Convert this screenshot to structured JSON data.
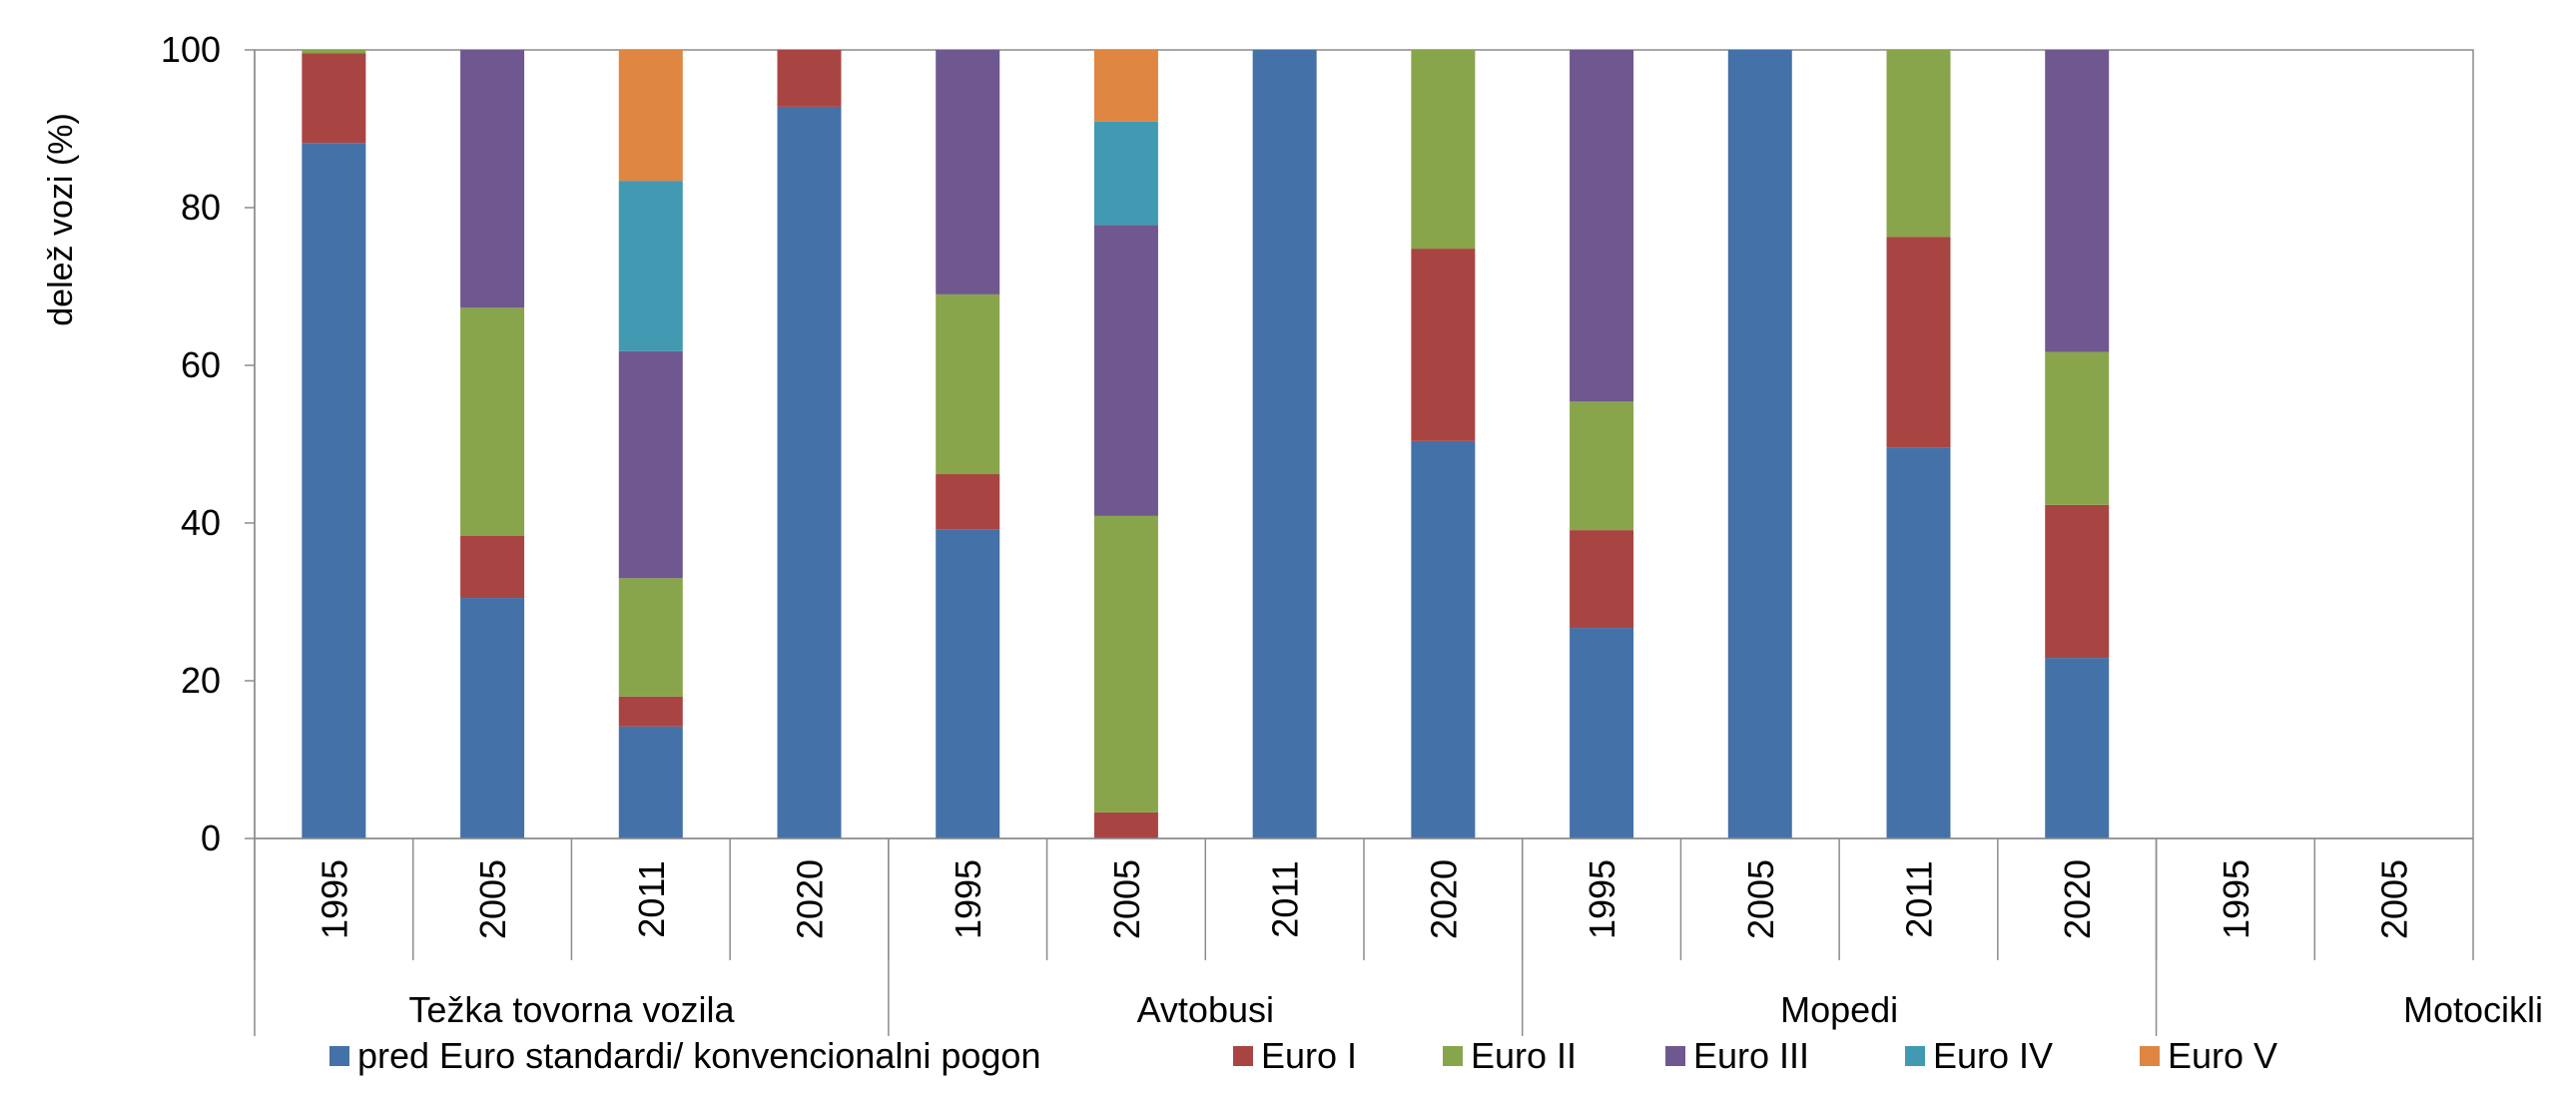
{
  "chart_data": {
    "type": "bar",
    "stacked": true,
    "ylabel": "delež vozi (%)",
    "ylim": [
      0,
      100
    ],
    "yticks": [
      "0",
      "20",
      "40",
      "60",
      "80",
      "100"
    ],
    "grid": false,
    "legend_position": "bottom",
    "groups": [
      {
        "label": "Težka tovorna vozila",
        "categories": [
          "1995",
          "2005",
          "2011",
          "2020"
        ]
      },
      {
        "label": "Avtobusi",
        "categories": [
          "1995",
          "2005",
          "2011",
          "2020"
        ]
      },
      {
        "label": "Mopedi",
        "categories": [
          "1995",
          "2005",
          "2011",
          "2020"
        ]
      },
      {
        "label": "Motocikli",
        "categories": [
          "1995",
          "2005"
        ]
      }
    ],
    "categories": [
      "1995",
      "2005",
      "2011",
      "2020",
      "1995",
      "2005",
      "2011",
      "2020",
      "1995",
      "2005",
      "2011",
      "2020",
      "1995",
      "2005"
    ],
    "series": [
      {
        "name": "pred Euro standardi/ konvencionalni  pogon",
        "color": "#4472A8",
        "values": [
          88.2,
          30.5,
          14.2,
          92.8,
          39.2,
          0,
          100,
          50.4,
          26.7,
          100,
          49.6,
          22.9,
          0,
          0
        ]
      },
      {
        "name": "Euro I",
        "color": "#A84543",
        "values": [
          11.4,
          7.9,
          3.8,
          7.2,
          7.0,
          3.3,
          0,
          24.4,
          12.4,
          0,
          26.7,
          19.4,
          0,
          0
        ]
      },
      {
        "name": "Euro II",
        "color": "#88A54B",
        "values": [
          0.4,
          28.9,
          15.0,
          0,
          22.8,
          37.6,
          0,
          25.2,
          16.3,
          0,
          23.7,
          19.4,
          0,
          0
        ]
      },
      {
        "name": "Euro III",
        "color": "#6F588F",
        "values": [
          0,
          32.7,
          28.8,
          0,
          31.0,
          36.9,
          0,
          0,
          44.6,
          0,
          0,
          38.3,
          0,
          0
        ]
      },
      {
        "name": "Euro IV",
        "color": "#4299B2",
        "values": [
          0,
          0,
          21.6,
          0,
          0,
          13.1,
          0,
          0,
          0,
          0,
          0,
          0,
          0,
          0
        ]
      },
      {
        "name": "Euro V",
        "color": "#DE8642",
        "values": [
          0,
          0,
          16.6,
          0,
          0,
          9.1,
          0,
          0,
          0,
          0,
          0,
          0,
          0,
          0
        ]
      }
    ]
  }
}
